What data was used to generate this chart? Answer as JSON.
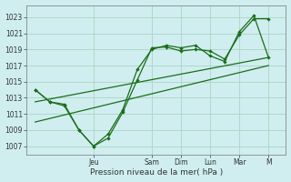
{
  "xlabel": "Pression niveau de la mer( hPa )",
  "bg_color": "#d0eef0",
  "grid_color": "#b0d8c8",
  "line_color": "#1a6e1a",
  "ylim": [
    1006,
    1024.5
  ],
  "yticks": [
    1007,
    1009,
    1011,
    1013,
    1015,
    1017,
    1019,
    1021,
    1023
  ],
  "day_labels": [
    "Jeu",
    "Sam",
    "Dim",
    "Lun",
    "Mar",
    "M"
  ],
  "day_positions": [
    2.0,
    4.0,
    5.0,
    6.0,
    7.0,
    8.0
  ],
  "xlim": [
    -0.3,
    8.6
  ],
  "series1_x": [
    0,
    0.5,
    1.0,
    1.5,
    2.0,
    2.5,
    3.0,
    3.5,
    4.0,
    4.5,
    5.0,
    5.5,
    6.0,
    6.5,
    7.0,
    7.5,
    8.0
  ],
  "series1_y": [
    1014.0,
    1012.5,
    1012.2,
    1009.0,
    1007.0,
    1008.0,
    1011.2,
    1015.2,
    1019.2,
    1019.3,
    1018.8,
    1019.0,
    1018.8,
    1017.8,
    1020.8,
    1022.8,
    1022.8
  ],
  "series2_x": [
    0,
    0.5,
    1.0,
    1.5,
    2.0,
    2.5,
    3.0,
    3.5,
    4.0,
    4.5,
    5.0,
    5.5,
    6.0,
    6.5,
    7.0,
    7.5,
    8.0
  ],
  "series2_y": [
    1014.0,
    1012.5,
    1012.0,
    1009.0,
    1007.0,
    1008.5,
    1011.5,
    1016.5,
    1019.0,
    1019.5,
    1019.2,
    1019.5,
    1018.2,
    1017.5,
    1021.2,
    1023.2,
    1018.0
  ],
  "trend1_x": [
    0,
    8.0
  ],
  "trend1_y": [
    1012.5,
    1018.0
  ],
  "trend2_x": [
    0,
    8.0
  ],
  "trend2_y": [
    1010.0,
    1017.0
  ]
}
